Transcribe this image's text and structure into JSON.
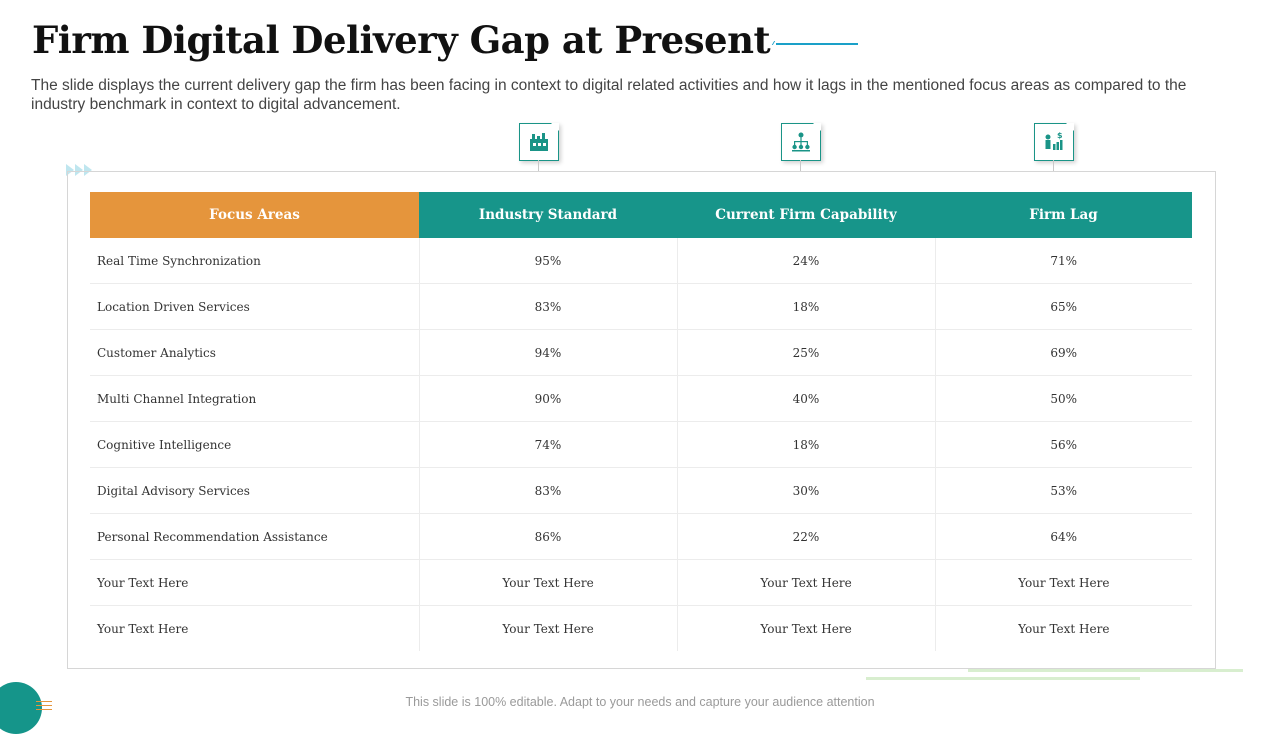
{
  "slide": {
    "title": "Firm Digital Delivery Gap at Present",
    "subtitle": "The slide displays the current delivery gap the firm has been facing in context to digital related activities and how it lags in the mentioned focus areas as compared to the industry benchmark in context to digital advancement.",
    "footer": "This slide is 100% editable. Adapt to your needs and capture your audience attention"
  },
  "icons": [
    "factory-icon",
    "org-chart-icon",
    "financial-growth-icon"
  ],
  "colors": {
    "orange_header": "#e5953c",
    "teal_header": "#17958a",
    "accent_line": "#1aa0c8",
    "light_green": "#d8eecf"
  },
  "table": {
    "headers": [
      "Focus Areas",
      "Industry Standard",
      "Current Firm Capability",
      "Firm Lag"
    ],
    "rows": [
      [
        "Real Time Synchronization",
        "95%",
        "24%",
        "71%"
      ],
      [
        "Location Driven Services",
        "83%",
        "18%",
        "65%"
      ],
      [
        "Customer Analytics",
        "94%",
        "25%",
        "69%"
      ],
      [
        "Multi Channel Integration",
        "90%",
        "40%",
        "50%"
      ],
      [
        "Cognitive Intelligence",
        "74%",
        "18%",
        "56%"
      ],
      [
        "Digital Advisory Services",
        "83%",
        "30%",
        "53%"
      ],
      [
        "Personal Recommendation Assistance",
        "86%",
        "22%",
        "64%"
      ],
      [
        "Your Text Here",
        "Your Text Here",
        "Your Text Here",
        "Your Text Here"
      ],
      [
        "Your Text Here",
        "Your Text Here",
        "Your Text Here",
        "Your Text Here"
      ]
    ]
  }
}
